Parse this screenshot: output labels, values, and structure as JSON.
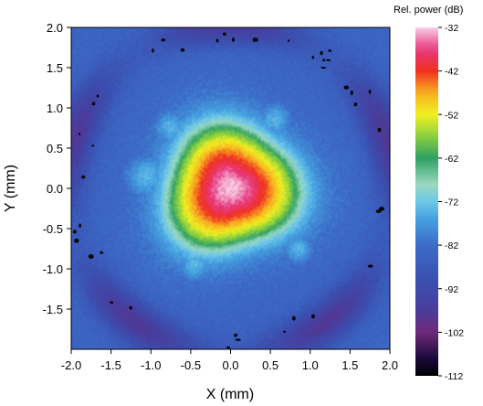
{
  "chart_data": {
    "type": "heatmap",
    "title": "",
    "xlabel": "X (mm)",
    "ylabel": "Y (mm)",
    "xlim": [
      -2.0,
      2.0
    ],
    "ylim": [
      -2.0,
      2.0
    ],
    "x_ticks": [
      "-2.0",
      "-1.5",
      "-1.0",
      "-0.5",
      "0.0",
      "0.5",
      "1.0",
      "1.5",
      "2.0"
    ],
    "y_ticks": [
      "2.0",
      "1.5",
      "1.0",
      "0.5",
      "0.0",
      "-0.5",
      "-1.0",
      "-1.5"
    ],
    "colorbar": {
      "title": "Rel. power (dB)",
      "min": -112,
      "max": -32,
      "tick_labels": [
        "-32",
        "-42",
        "-52",
        "-62",
        "-72",
        "-82",
        "-92",
        "-102",
        "-112"
      ]
    },
    "peak": {
      "x": 0.0,
      "y": 0.0,
      "value": -32
    },
    "background_level": -88,
    "colormap_stops": [
      {
        "value": -112,
        "color": "#000000"
      },
      {
        "value": -108,
        "color": "#1a0a3c"
      },
      {
        "value": -102,
        "color": "#6e2a78"
      },
      {
        "value": -97,
        "color": "#4a3c9c"
      },
      {
        "value": -90,
        "color": "#3b4fb0"
      },
      {
        "value": -82,
        "color": "#3c6cc8"
      },
      {
        "value": -76,
        "color": "#45a0e0"
      },
      {
        "value": -72,
        "color": "#6ec8e8"
      },
      {
        "value": -68,
        "color": "#9ad8c0"
      },
      {
        "value": -62,
        "color": "#2ea062"
      },
      {
        "value": -57,
        "color": "#8cd040"
      },
      {
        "value": -52,
        "color": "#f0f020"
      },
      {
        "value": -47,
        "color": "#f8b020"
      },
      {
        "value": -42,
        "color": "#f03020"
      },
      {
        "value": -37,
        "color": "#e83880"
      },
      {
        "value": -32,
        "color": "#f8d0e8"
      }
    ]
  }
}
